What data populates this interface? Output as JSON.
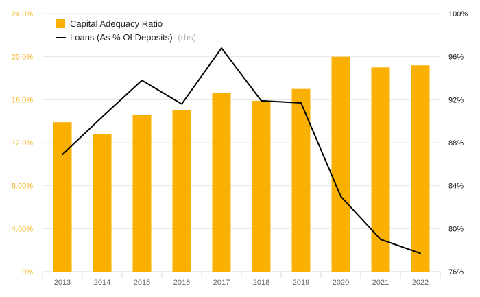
{
  "chart_data": {
    "type": "bar",
    "categories": [
      "2013",
      "2014",
      "2015",
      "2016",
      "2017",
      "2018",
      "2019",
      "2020",
      "2021",
      "2022"
    ],
    "series": [
      {
        "name": "Capital Adequacy Ratio",
        "type": "bar",
        "axis": "left",
        "color": "#f9b000",
        "values": [
          13.9,
          12.8,
          14.6,
          15.0,
          16.6,
          15.9,
          17.0,
          20.0,
          19.0,
          19.2
        ]
      },
      {
        "name": "Loans (As % Of Deposits)",
        "legend_suffix": "(rhs)",
        "type": "line",
        "axis": "right",
        "color": "#000000",
        "values": [
          86.9,
          90.4,
          93.8,
          91.6,
          96.8,
          91.9,
          91.7,
          83.0,
          79.0,
          77.7
        ]
      }
    ],
    "y_left": {
      "ylim": [
        0,
        24
      ],
      "ticks": [
        "0%",
        "4.00%",
        "8.00%",
        "12.0%",
        "16.0%",
        "20.0%",
        "24.0%"
      ],
      "color": "#f3b11c"
    },
    "y_right": {
      "ylim": [
        76,
        100
      ],
      "ticks": [
        "76%",
        "80%",
        "84%",
        "88%",
        "92%",
        "96%",
        "100%"
      ],
      "color": "#111111"
    },
    "grid": true,
    "legend_position": "top-left"
  }
}
